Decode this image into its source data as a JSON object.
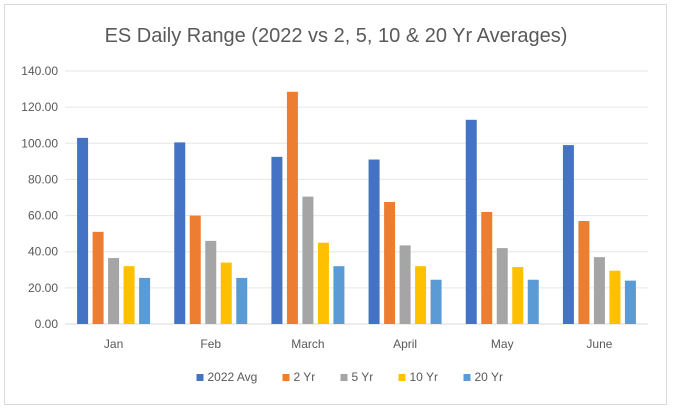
{
  "chart_data": {
    "type": "bar",
    "title": "ES Daily Range (2022 vs 2, 5, 10 & 20 Yr Averages)",
    "xlabel": "",
    "ylabel": "",
    "categories": [
      "Jan",
      "Feb",
      "March",
      "April",
      "May",
      "June"
    ],
    "ylim": [
      0,
      140
    ],
    "yticks": [
      "0.00",
      "20.00",
      "40.00",
      "60.00",
      "80.00",
      "100.00",
      "120.00",
      "140.00"
    ],
    "grid": true,
    "legend_position": "bottom",
    "series": [
      {
        "name": "2022 Avg",
        "color": "#4472c4",
        "values": [
          103,
          100.5,
          92.5,
          91,
          113,
          99
        ]
      },
      {
        "name": "2 Yr",
        "color": "#ed7d31",
        "values": [
          51,
          60,
          128.5,
          67.5,
          62,
          57
        ]
      },
      {
        "name": "5 Yr",
        "color": "#a5a5a5",
        "values": [
          36.5,
          46,
          70.5,
          43.5,
          42,
          37
        ]
      },
      {
        "name": "10 Yr",
        "color": "#ffc000",
        "values": [
          32,
          34,
          45,
          32,
          31.5,
          29.5
        ]
      },
      {
        "name": "20 Yr",
        "color": "#5b9bd5",
        "values": [
          25.5,
          25.5,
          32,
          24.5,
          24.5,
          24
        ]
      }
    ]
  }
}
